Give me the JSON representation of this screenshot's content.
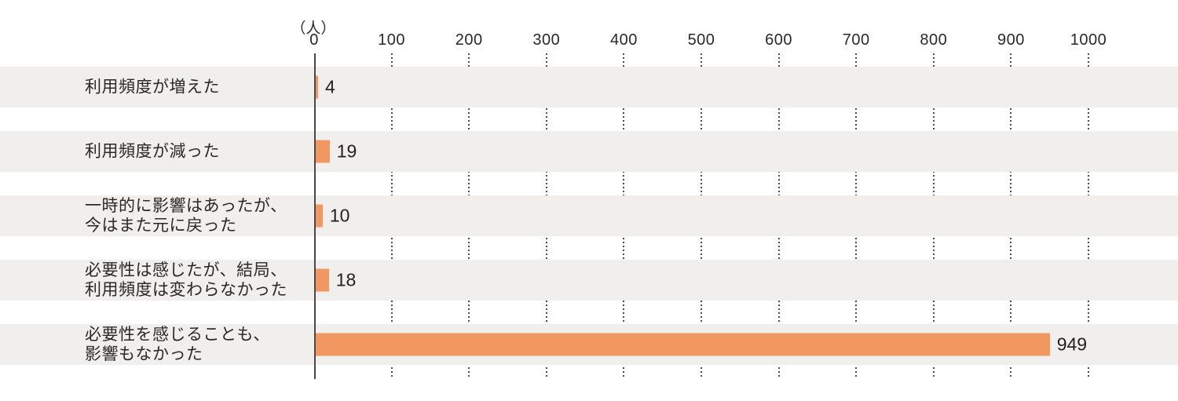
{
  "chart_data": {
    "type": "bar",
    "orientation": "horizontal",
    "title": "",
    "unit_label": "（人）",
    "categories": [
      "利用頻度が増えた",
      "利用頻度が減った",
      "一時的に影響はあったが、\n今はまた元に戻った",
      "必要性は感じたが、結局、\n利用頻度は変わらなかった",
      "必要性を感じることも、\n影響もなかった"
    ],
    "values": [
      4,
      19,
      10,
      18,
      949
    ],
    "xticks": [
      "0",
      "100",
      "200",
      "300",
      "400",
      "500",
      "600",
      "700",
      "800",
      "900",
      "1000"
    ],
    "xlim": [
      0,
      1100
    ],
    "grid": "dotted-vertical",
    "legend": "none",
    "bar_color": "#f0985f",
    "band_color": "#f0efed",
    "grid_color": "#4d4d4d",
    "axis_color": "#4b4745",
    "text_color": "#2b2826"
  }
}
